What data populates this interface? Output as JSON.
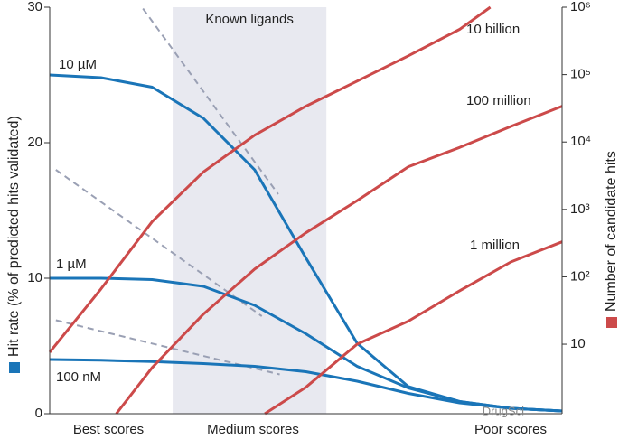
{
  "chart_data": {
    "type": "line",
    "y_label": "Hit rate (% of predicted hits validated)",
    "y2_label": "Number of candidate hits",
    "x_labels": [
      "Best scores",
      "Medium scores",
      "Poor scores"
    ],
    "xlim": [
      0,
      100
    ],
    "ylim": [
      0,
      30
    ],
    "yticks": [
      0,
      10,
      20,
      30
    ],
    "y2lim": [
      0.93,
      1000000
    ],
    "y2_log": true,
    "y2ticks": [
      {
        "value": 10,
        "label": "10"
      },
      {
        "value": 100,
        "label": "10²"
      },
      {
        "value": 1000,
        "label": "10³"
      },
      {
        "value": 10000,
        "label": "10⁴"
      },
      {
        "value": 100000,
        "label": "10⁵"
      },
      {
        "value": 1000000,
        "label": "10⁶"
      }
    ],
    "shaded_band": {
      "label": "Known ligands",
      "x": [
        24,
        54
      ],
      "color": "#e8e9f0"
    },
    "series": [
      {
        "name": "10 µM",
        "color": "#1a75b8",
        "x": [
          0,
          10,
          20,
          30,
          40,
          50,
          60,
          70,
          80,
          90,
          100
        ],
        "values": [
          25,
          24.8,
          24.1,
          21.8,
          18,
          11.5,
          5.2,
          2.0,
          0.9,
          0.4,
          0.2
        ]
      },
      {
        "name": "1 µM",
        "color": "#1a75b8",
        "x": [
          0,
          10,
          20,
          30,
          40,
          50,
          60,
          70,
          80,
          90,
          100
        ],
        "values": [
          10,
          10,
          9.9,
          9.4,
          8.0,
          5.9,
          3.5,
          1.9,
          0.9,
          0.4,
          0.2
        ]
      },
      {
        "name": "100 nM",
        "color": "#1a75b8",
        "x": [
          0,
          10,
          20,
          30,
          40,
          50,
          60,
          70,
          80,
          90,
          100
        ],
        "values": [
          4.0,
          3.95,
          3.85,
          3.7,
          3.5,
          3.1,
          2.4,
          1.5,
          0.8,
          0.4,
          0.2
        ]
      },
      {
        "name": "10 billion",
        "color": "#cc4a4a",
        "axis": "y2",
        "x": [
          0,
          10,
          20,
          30,
          40,
          50,
          60,
          70,
          80,
          86
        ],
        "values": [
          7.6,
          66,
          660,
          3600,
          12600,
          34000,
          80000,
          190000,
          470000,
          1000000
        ]
      },
      {
        "name": "100 million",
        "color": "#cc4a4a",
        "axis": "y2",
        "x": [
          13,
          20,
          30,
          40,
          50,
          60,
          70,
          80,
          90,
          100
        ],
        "values": [
          0.93,
          4.5,
          28,
          130,
          450,
          1350,
          4300,
          8300,
          17000,
          34000
        ]
      },
      {
        "name": "1 million",
        "color": "#cc4a4a",
        "axis": "y2",
        "x": [
          42,
          50,
          60,
          70,
          80,
          90,
          100
        ],
        "values": [
          0.93,
          2.3,
          10,
          22,
          62,
          166,
          330
        ]
      }
    ],
    "guide_color": "#9aa0b4",
    "guide_lines": [
      {
        "x": [
          18.2,
          44.6
        ],
        "values": [
          29.9,
          16.2
        ]
      },
      {
        "x": [
          1.2,
          41.4
        ],
        "values": [
          18.0,
          7.2
        ]
      },
      {
        "x": [
          1.2,
          44.9
        ],
        "values": [
          6.9,
          2.9
        ]
      }
    ],
    "watermark": "DrugSci"
  }
}
